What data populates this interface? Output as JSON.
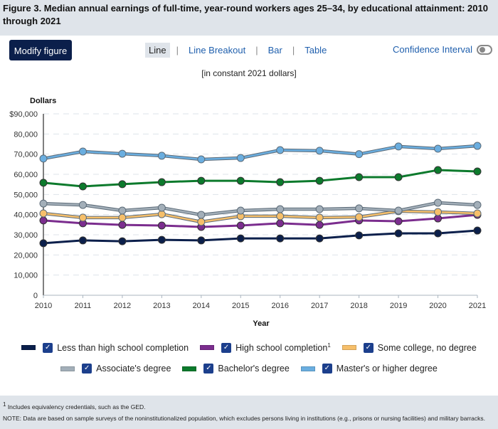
{
  "header": {
    "title": "Figure 3. Median annual earnings of full-time, year-round workers ages 25–34, by educational attainment: 2010 through 2021"
  },
  "toolbar": {
    "modify_label": "Modify figure",
    "tabs": [
      {
        "label": "Line",
        "active": true
      },
      {
        "label": "Line Breakout",
        "active": false
      },
      {
        "label": "Bar",
        "active": false
      },
      {
        "label": "Table",
        "active": false
      }
    ],
    "separator": "|",
    "confidence_label": "Confidence Interval",
    "confidence_on": false
  },
  "subtitle": "[in constant 2021 dollars]",
  "chart_data": {
    "type": "line",
    "title": "Median annual earnings of full-time, year-round workers ages 25–34, by educational attainment: 2010 through 2021",
    "subtitle": "[in constant 2021 dollars]",
    "xlabel": "Year",
    "ylabel": "Dollars",
    "x": [
      "2010",
      "2011",
      "2012",
      "2013",
      "2014",
      "2015",
      "2016",
      "2017",
      "2018",
      "2019",
      "2020",
      "2021"
    ],
    "ylim": [
      0,
      90000
    ],
    "yticks": [
      0,
      10000,
      20000,
      30000,
      40000,
      50000,
      60000,
      70000,
      80000,
      90000
    ],
    "ytick_labels": [
      "0",
      "10,000",
      "20,000",
      "30,000",
      "40,000",
      "50,000",
      "60,000",
      "70,000",
      "80,000",
      "$90,000"
    ],
    "grid": true,
    "legend_position": "bottom",
    "series": [
      {
        "name": "Less than high school completion",
        "color": "#0b1f4b",
        "values": [
          25800,
          27200,
          26800,
          27500,
          27200,
          28200,
          28200,
          28200,
          29700,
          30700,
          30700,
          32100
        ]
      },
      {
        "name": "High school completion",
        "footnote": "1",
        "color": "#7b2d8e",
        "values": [
          37100,
          35700,
          34900,
          34600,
          33900,
          34600,
          35700,
          34900,
          37100,
          36700,
          38100,
          39900
        ]
      },
      {
        "name": "Some college, no degree",
        "color": "#f6bf6a",
        "values": [
          40600,
          38500,
          38500,
          40200,
          36400,
          39200,
          39200,
          38500,
          38800,
          41700,
          41300,
          40600
        ]
      },
      {
        "name": "Associate's degree",
        "color": "#a3afb9",
        "values": [
          45500,
          44800,
          42000,
          43400,
          39900,
          42000,
          42700,
          42700,
          43100,
          42000,
          45900,
          44800
        ]
      },
      {
        "name": "Bachelor's degree",
        "color": "#0c7a2c",
        "values": [
          55800,
          54000,
          55100,
          56100,
          56800,
          56800,
          56100,
          56800,
          58600,
          58600,
          62100,
          61400
        ]
      },
      {
        "name": "Master's or higher degree",
        "color": "#6aaee0",
        "values": [
          67800,
          71300,
          70200,
          69200,
          67400,
          68100,
          72000,
          71700,
          70000,
          73800,
          72700,
          74100
        ]
      }
    ]
  },
  "legend": {
    "row1": [
      0,
      1,
      2
    ],
    "row2": [
      3,
      4,
      5
    ],
    "check_glyph": "✓"
  },
  "footer": {
    "footnote_mark": "1",
    "footnote": " Includes equivalency credentials, such as the GED.",
    "note": "NOTE: Data are based on sample surveys of the noninstitutionalized population, which excludes persons living in institutions (e.g., prisons or nursing facilities) and military barracks."
  }
}
